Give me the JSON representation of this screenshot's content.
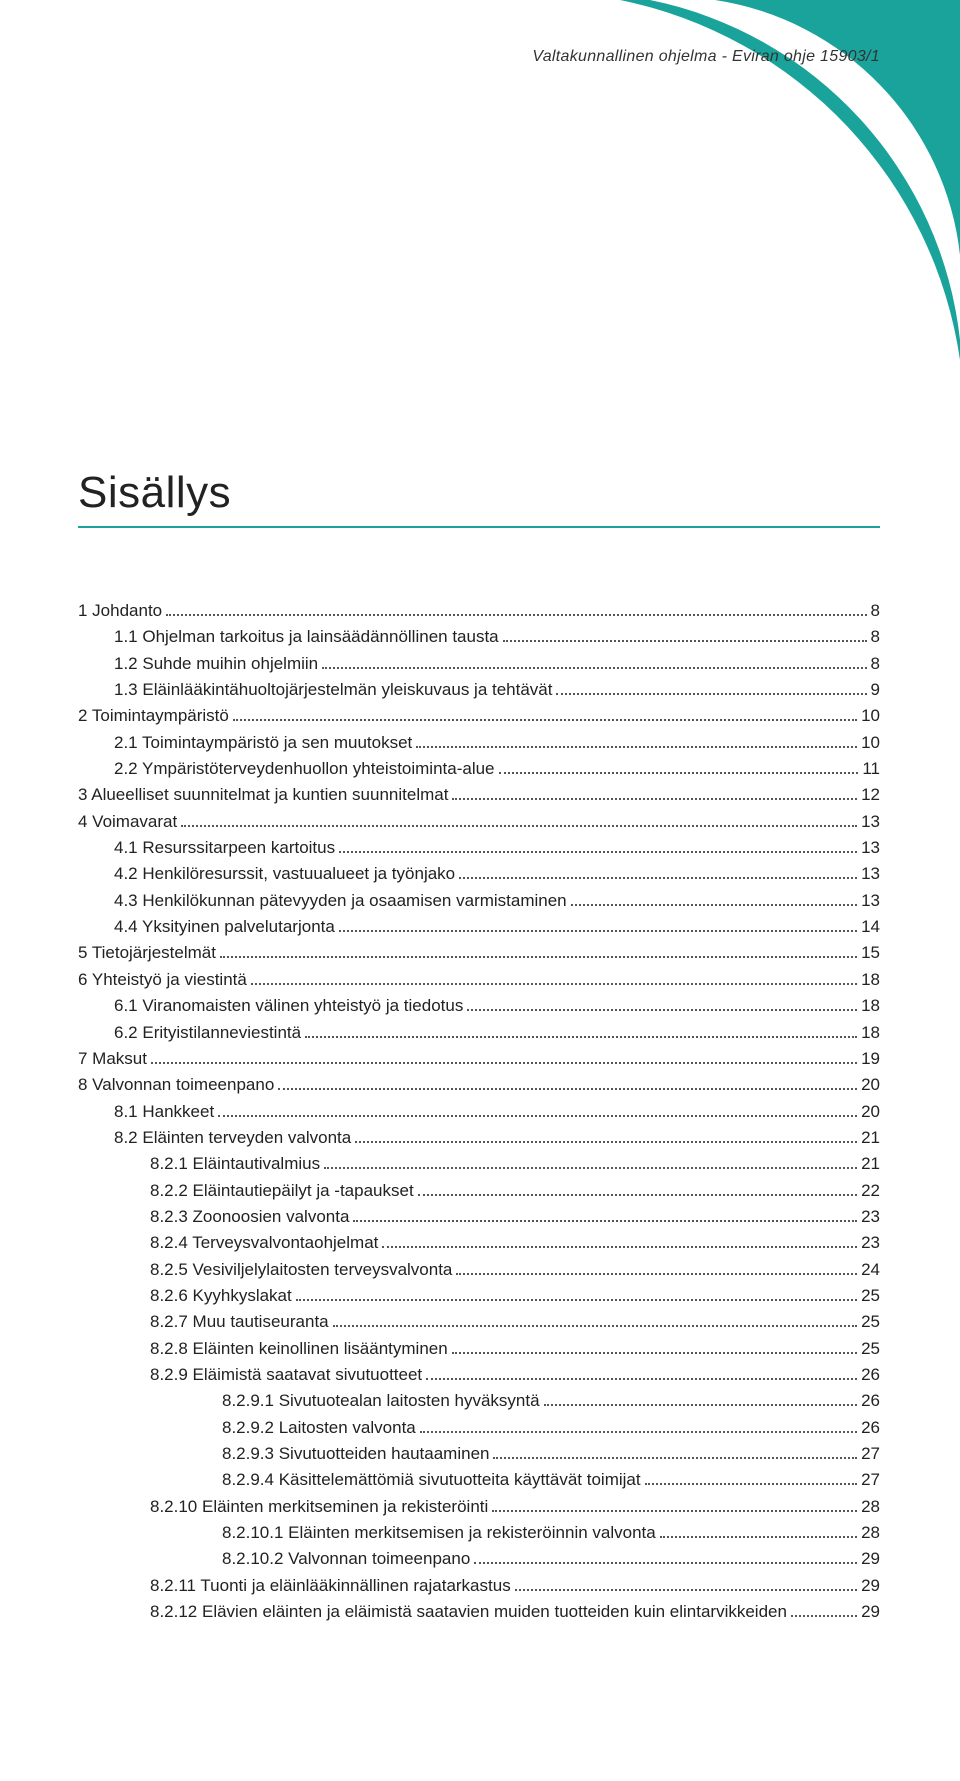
{
  "header": {
    "text": "Valtakunnallinen ohjelma - Eviran ohje 15903/1"
  },
  "decoration": {
    "fill": "#1aa39a",
    "background": "#ffffff"
  },
  "title": "Sisällys",
  "title_underline_color": "#1aa39a",
  "text_color": "#222222",
  "toc": [
    {
      "label": "1 Johdanto",
      "page": "8",
      "indent": 0
    },
    {
      "label": "1.1 Ohjelman tarkoitus ja lainsäädännöllinen tausta",
      "page": "8",
      "indent": 1
    },
    {
      "label": "1.2 Suhde muihin ohjelmiin",
      "page": "8",
      "indent": 1
    },
    {
      "label": "1.3 Eläinlääkintähuoltojärjestelmän yleiskuvaus ja tehtävät",
      "page": "9",
      "indent": 1
    },
    {
      "label": "2 Toimintaympäristö",
      "page": "10",
      "indent": 0
    },
    {
      "label": "2.1 Toimintaympäristö ja sen muutokset",
      "page": "10",
      "indent": 1
    },
    {
      "label": "2.2 Ympäristöterveydenhuollon yhteistoiminta-alue",
      "page": "11",
      "indent": 1
    },
    {
      "label": "3 Alueelliset suunnitelmat ja kuntien suunnitelmat",
      "page": "12",
      "indent": 0
    },
    {
      "label": "4 Voimavarat",
      "page": "13",
      "indent": 0
    },
    {
      "label": "4.1 Resurssitarpeen kartoitus",
      "page": "13",
      "indent": 1
    },
    {
      "label": "4.2 Henkilöresurssit, vastuualueet ja työnjako",
      "page": "13",
      "indent": 1
    },
    {
      "label": "4.3 Henkilökunnan pätevyyden ja osaamisen varmistaminen",
      "page": "13",
      "indent": 1
    },
    {
      "label": "4.4 Yksityinen palvelutarjonta",
      "page": "14",
      "indent": 1
    },
    {
      "label": "5 Tietojärjestelmät",
      "page": "15",
      "indent": 0
    },
    {
      "label": "6 Yhteistyö ja viestintä",
      "page": "18",
      "indent": 0
    },
    {
      "label": "6.1 Viranomaisten välinen yhteistyö ja tiedotus",
      "page": "18",
      "indent": 1
    },
    {
      "label": "6.2 Erityistilanneviestintä",
      "page": "18",
      "indent": 1
    },
    {
      "label": "7 Maksut",
      "page": "19",
      "indent": 0
    },
    {
      "label": "8 Valvonnan toimeenpano",
      "page": "20",
      "indent": 0
    },
    {
      "label": "8.1 Hankkeet",
      "page": "20",
      "indent": 1
    },
    {
      "label": "8.2 Eläinten terveyden valvonta",
      "page": "21",
      "indent": 1
    },
    {
      "label": "8.2.1 Eläintautivalmius",
      "page": "21",
      "indent": 2
    },
    {
      "label": "8.2.2 Eläintautiepäilyt ja -tapaukset",
      "page": "22",
      "indent": 2
    },
    {
      "label": "8.2.3 Zoonoosien valvonta",
      "page": "23",
      "indent": 2
    },
    {
      "label": "8.2.4 Terveysvalvontaohjelmat",
      "page": "23",
      "indent": 2
    },
    {
      "label": "8.2.5 Vesiviljelylaitosten terveysvalvonta",
      "page": "24",
      "indent": 2
    },
    {
      "label": "8.2.6 Kyyhkyslakat",
      "page": "25",
      "indent": 2
    },
    {
      "label": "8.2.7 Muu tautiseuranta",
      "page": "25",
      "indent": 2
    },
    {
      "label": "8.2.8 Eläinten keinollinen lisääntyminen",
      "page": "25",
      "indent": 2
    },
    {
      "label": "8.2.9 Eläimistä saatavat sivutuotteet",
      "page": "26",
      "indent": 2
    },
    {
      "label": "8.2.9.1 Sivutuotealan laitosten hyväksyntä",
      "page": "26",
      "indent": 3
    },
    {
      "label": "8.2.9.2 Laitosten valvonta",
      "page": "26",
      "indent": 3
    },
    {
      "label": "8.2.9.3 Sivutuotteiden hautaaminen",
      "page": "27",
      "indent": 3
    },
    {
      "label": "8.2.9.4 Käsittelemättömiä sivutuotteita käyttävät toimijat",
      "page": "27",
      "indent": 3
    },
    {
      "label": "8.2.10 Eläinten merkitseminen ja rekisteröinti",
      "page": "28",
      "indent": 2
    },
    {
      "label": "8.2.10.1 Eläinten merkitsemisen ja rekisteröinnin valvonta",
      "page": "28",
      "indent": 3
    },
    {
      "label": "8.2.10.2 Valvonnan toimeenpano",
      "page": "29",
      "indent": 3
    },
    {
      "label": "8.2.11 Tuonti ja eläinlääkinnällinen rajatarkastus",
      "page": "29",
      "indent": 2
    },
    {
      "label": "8.2.12 Elävien eläinten ja eläimistä saatavien muiden tuotteiden kuin elintarvikkeiden",
      "page": "29",
      "indent": 2
    }
  ]
}
